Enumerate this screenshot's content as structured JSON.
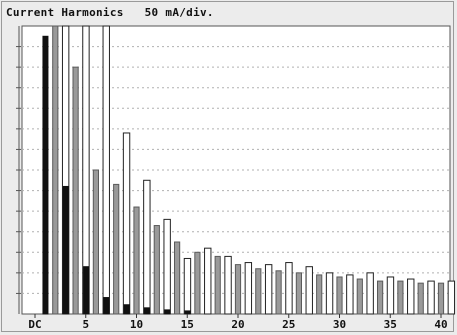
{
  "chart_data": {
    "type": "bar",
    "title": "Current Harmonics",
    "scale_label": "50 mA/div.",
    "xlabel": "",
    "ylabel": "",
    "ylim": [
      0,
      14
    ],
    "grid": true,
    "x_ticks": [
      "DC",
      "5",
      "10",
      "15",
      "20",
      "25",
      "30",
      "35",
      "40"
    ],
    "x_tick_orders": [
      0,
      5,
      10,
      15,
      20,
      25,
      30,
      35,
      40
    ],
    "colors": {
      "phase_1": "#111111",
      "phase_2": "#9a9a9a",
      "phase_3": "#ffffff"
    },
    "series": [
      {
        "orders": [
          1,
          3,
          5,
          7,
          9,
          11,
          13,
          15
        ],
        "values": [
          13.5,
          6.2,
          2.3,
          0.8,
          0.45,
          0.3,
          0.2,
          0.15
        ]
      },
      {
        "orders": [
          2,
          4,
          6,
          8,
          10,
          12,
          14,
          16,
          18,
          20,
          22,
          24,
          26,
          28,
          30,
          32,
          34,
          36,
          38,
          40
        ],
        "values": [
          14.0,
          12.0,
          7.0,
          6.3,
          5.2,
          4.3,
          3.5,
          3.0,
          2.8,
          2.4,
          2.2,
          2.1,
          2.0,
          1.9,
          1.8,
          1.7,
          1.6,
          1.6,
          1.5,
          1.5
        ]
      },
      {
        "orders": [
          3,
          5,
          7,
          9,
          11,
          13,
          15,
          17,
          19,
          21,
          23,
          25,
          27,
          29,
          31,
          33,
          35,
          37,
          39,
          41
        ],
        "values": [
          14.0,
          14.0,
          14.0,
          8.8,
          6.5,
          4.6,
          2.7,
          3.2,
          2.8,
          2.5,
          2.4,
          2.5,
          2.3,
          2.0,
          1.9,
          2.0,
          1.8,
          1.7,
          1.6,
          1.6
        ]
      }
    ]
  }
}
